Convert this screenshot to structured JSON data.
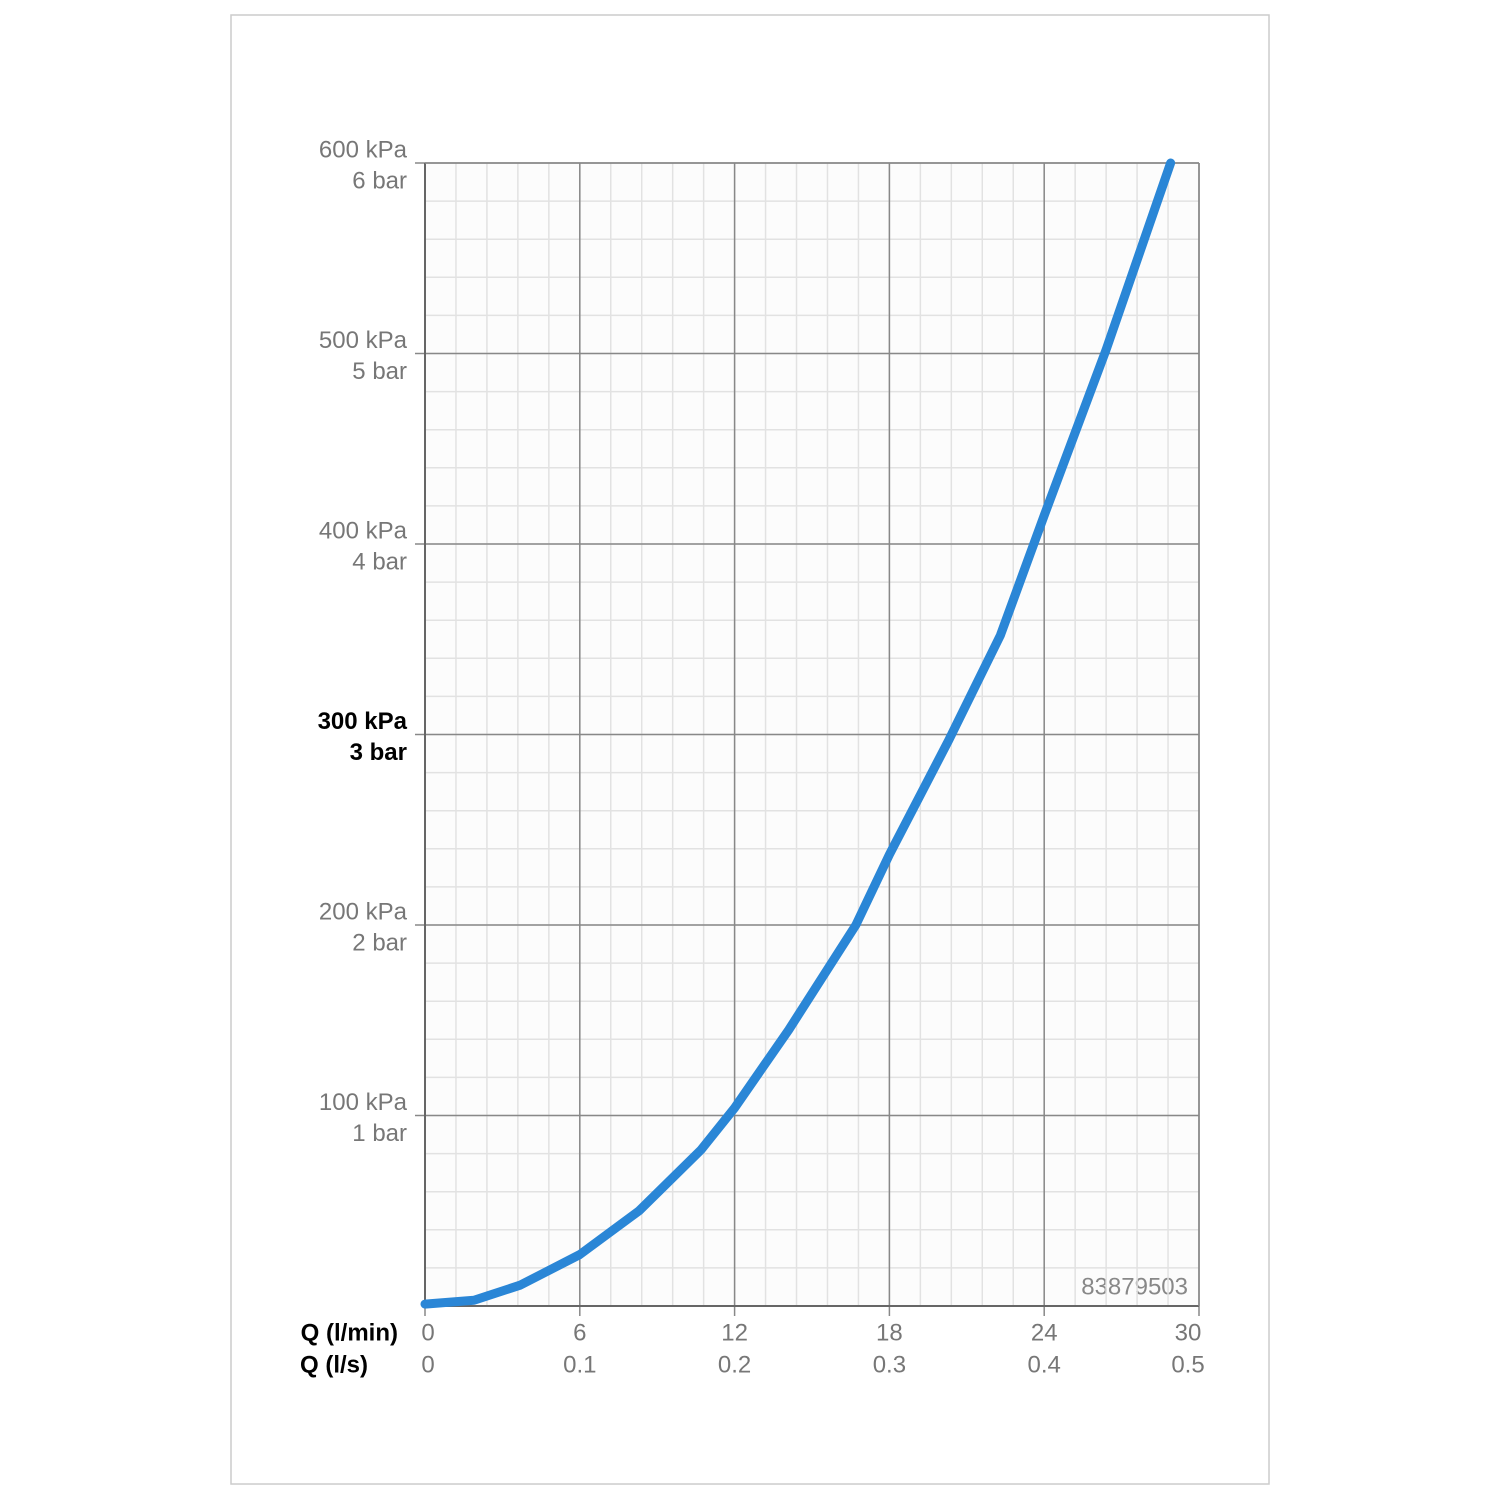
{
  "chart_data": {
    "type": "line",
    "x_label": "Q (l/min)",
    "x_label_secondary": "Q (l/s)",
    "annotation": "83879503",
    "x": [
      0,
      1.9,
      3.7,
      6.0,
      8.3,
      10.7,
      12.0,
      14.1,
      16.7,
      18.0,
      20.3,
      22.3,
      24.0,
      26.4,
      28.9
    ],
    "series": [
      {
        "color": "#2a86d6",
        "values": [
          1,
          3,
          11,
          27,
          50,
          82,
          104,
          145,
          200,
          237,
          297,
          352,
          415,
          502,
          600
        ]
      }
    ],
    "xlim": [
      0,
      30
    ],
    "xticks": [
      0,
      6,
      12,
      18,
      24,
      30
    ],
    "xticks_secondary": [
      {
        "value": 0,
        "label": "0"
      },
      {
        "value": 6,
        "label": "0.1"
      },
      {
        "value": 12,
        "label": "0.2"
      },
      {
        "value": 18,
        "label": "0.3"
      },
      {
        "value": 24,
        "label": "0.4"
      },
      {
        "value": 30,
        "label": "0.5"
      }
    ],
    "ylim": [
      0,
      600
    ],
    "yticks": [
      {
        "value": 100,
        "label": "100 kPa"
      },
      {
        "value": 200,
        "label": "200 kPa"
      },
      {
        "value": 300,
        "label": "300 kPa"
      },
      {
        "value": 400,
        "label": "400 kPa"
      },
      {
        "value": 500,
        "label": "500 kPa"
      },
      {
        "value": 600,
        "label": "600 kPa"
      }
    ],
    "yticks_secondary": [
      {
        "value": 100,
        "label": "1 bar"
      },
      {
        "value": 200,
        "label": "2 bar"
      },
      {
        "value": 300,
        "label": "3 bar"
      },
      {
        "value": 400,
        "label": "4 bar"
      },
      {
        "value": 500,
        "label": "5 bar"
      },
      {
        "value": 600,
        "label": "6 bar"
      }
    ],
    "highlight_ytick": 300,
    "grid": true,
    "minor_grid_step_x": 1.2,
    "minor_grid_step_y": 20
  }
}
